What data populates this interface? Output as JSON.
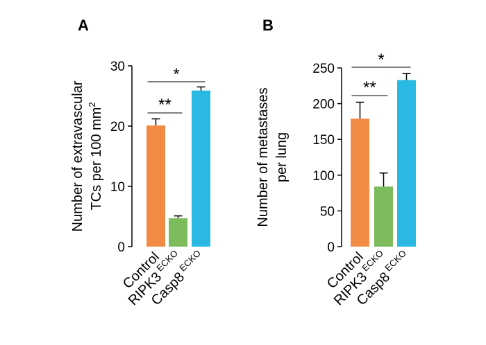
{
  "colors": {
    "Control": "#f28c45",
    "RIPK3": "#7cbc5c",
    "Casp8": "#29b9e3",
    "axis": "#000000"
  },
  "chart_data": [
    {
      "panel": "A",
      "type": "bar",
      "categories": [
        {
          "name": "Control",
          "superscript": ""
        },
        {
          "name": "RIPK3",
          "superscript": "ECKO"
        },
        {
          "name": "Casp8",
          "superscript": "ECKO"
        }
      ],
      "values": [
        20.1,
        4.7,
        25.9
      ],
      "errors": [
        1.1,
        0.4,
        0.6
      ],
      "ylim": [
        0,
        30
      ],
      "yticks": [
        0,
        10,
        20,
        30
      ],
      "ylabel_lines": [
        "Number of extravascular",
        "TCs per 100 mm"
      ],
      "ylabel_superscript": "2",
      "significance": [
        {
          "from": 0,
          "to": 1,
          "label": "**"
        },
        {
          "from": 0,
          "to": 2,
          "label": "*"
        }
      ]
    },
    {
      "panel": "B",
      "type": "bar",
      "categories": [
        {
          "name": "Control",
          "superscript": ""
        },
        {
          "name": "RIPK3",
          "superscript": "ECKO"
        },
        {
          "name": "Casp8",
          "superscript": "ECKO"
        }
      ],
      "values": [
        179,
        84,
        233
      ],
      "errors": [
        23,
        19,
        9
      ],
      "ylim": [
        0,
        250
      ],
      "yticks": [
        0,
        50,
        100,
        150,
        200,
        250
      ],
      "ylabel_lines": [
        "Number of metastases",
        "per lung"
      ],
      "ylabel_superscript": "",
      "significance": [
        {
          "from": 0,
          "to": 1,
          "label": "**"
        },
        {
          "from": 0,
          "to": 2,
          "label": "*"
        }
      ]
    }
  ]
}
